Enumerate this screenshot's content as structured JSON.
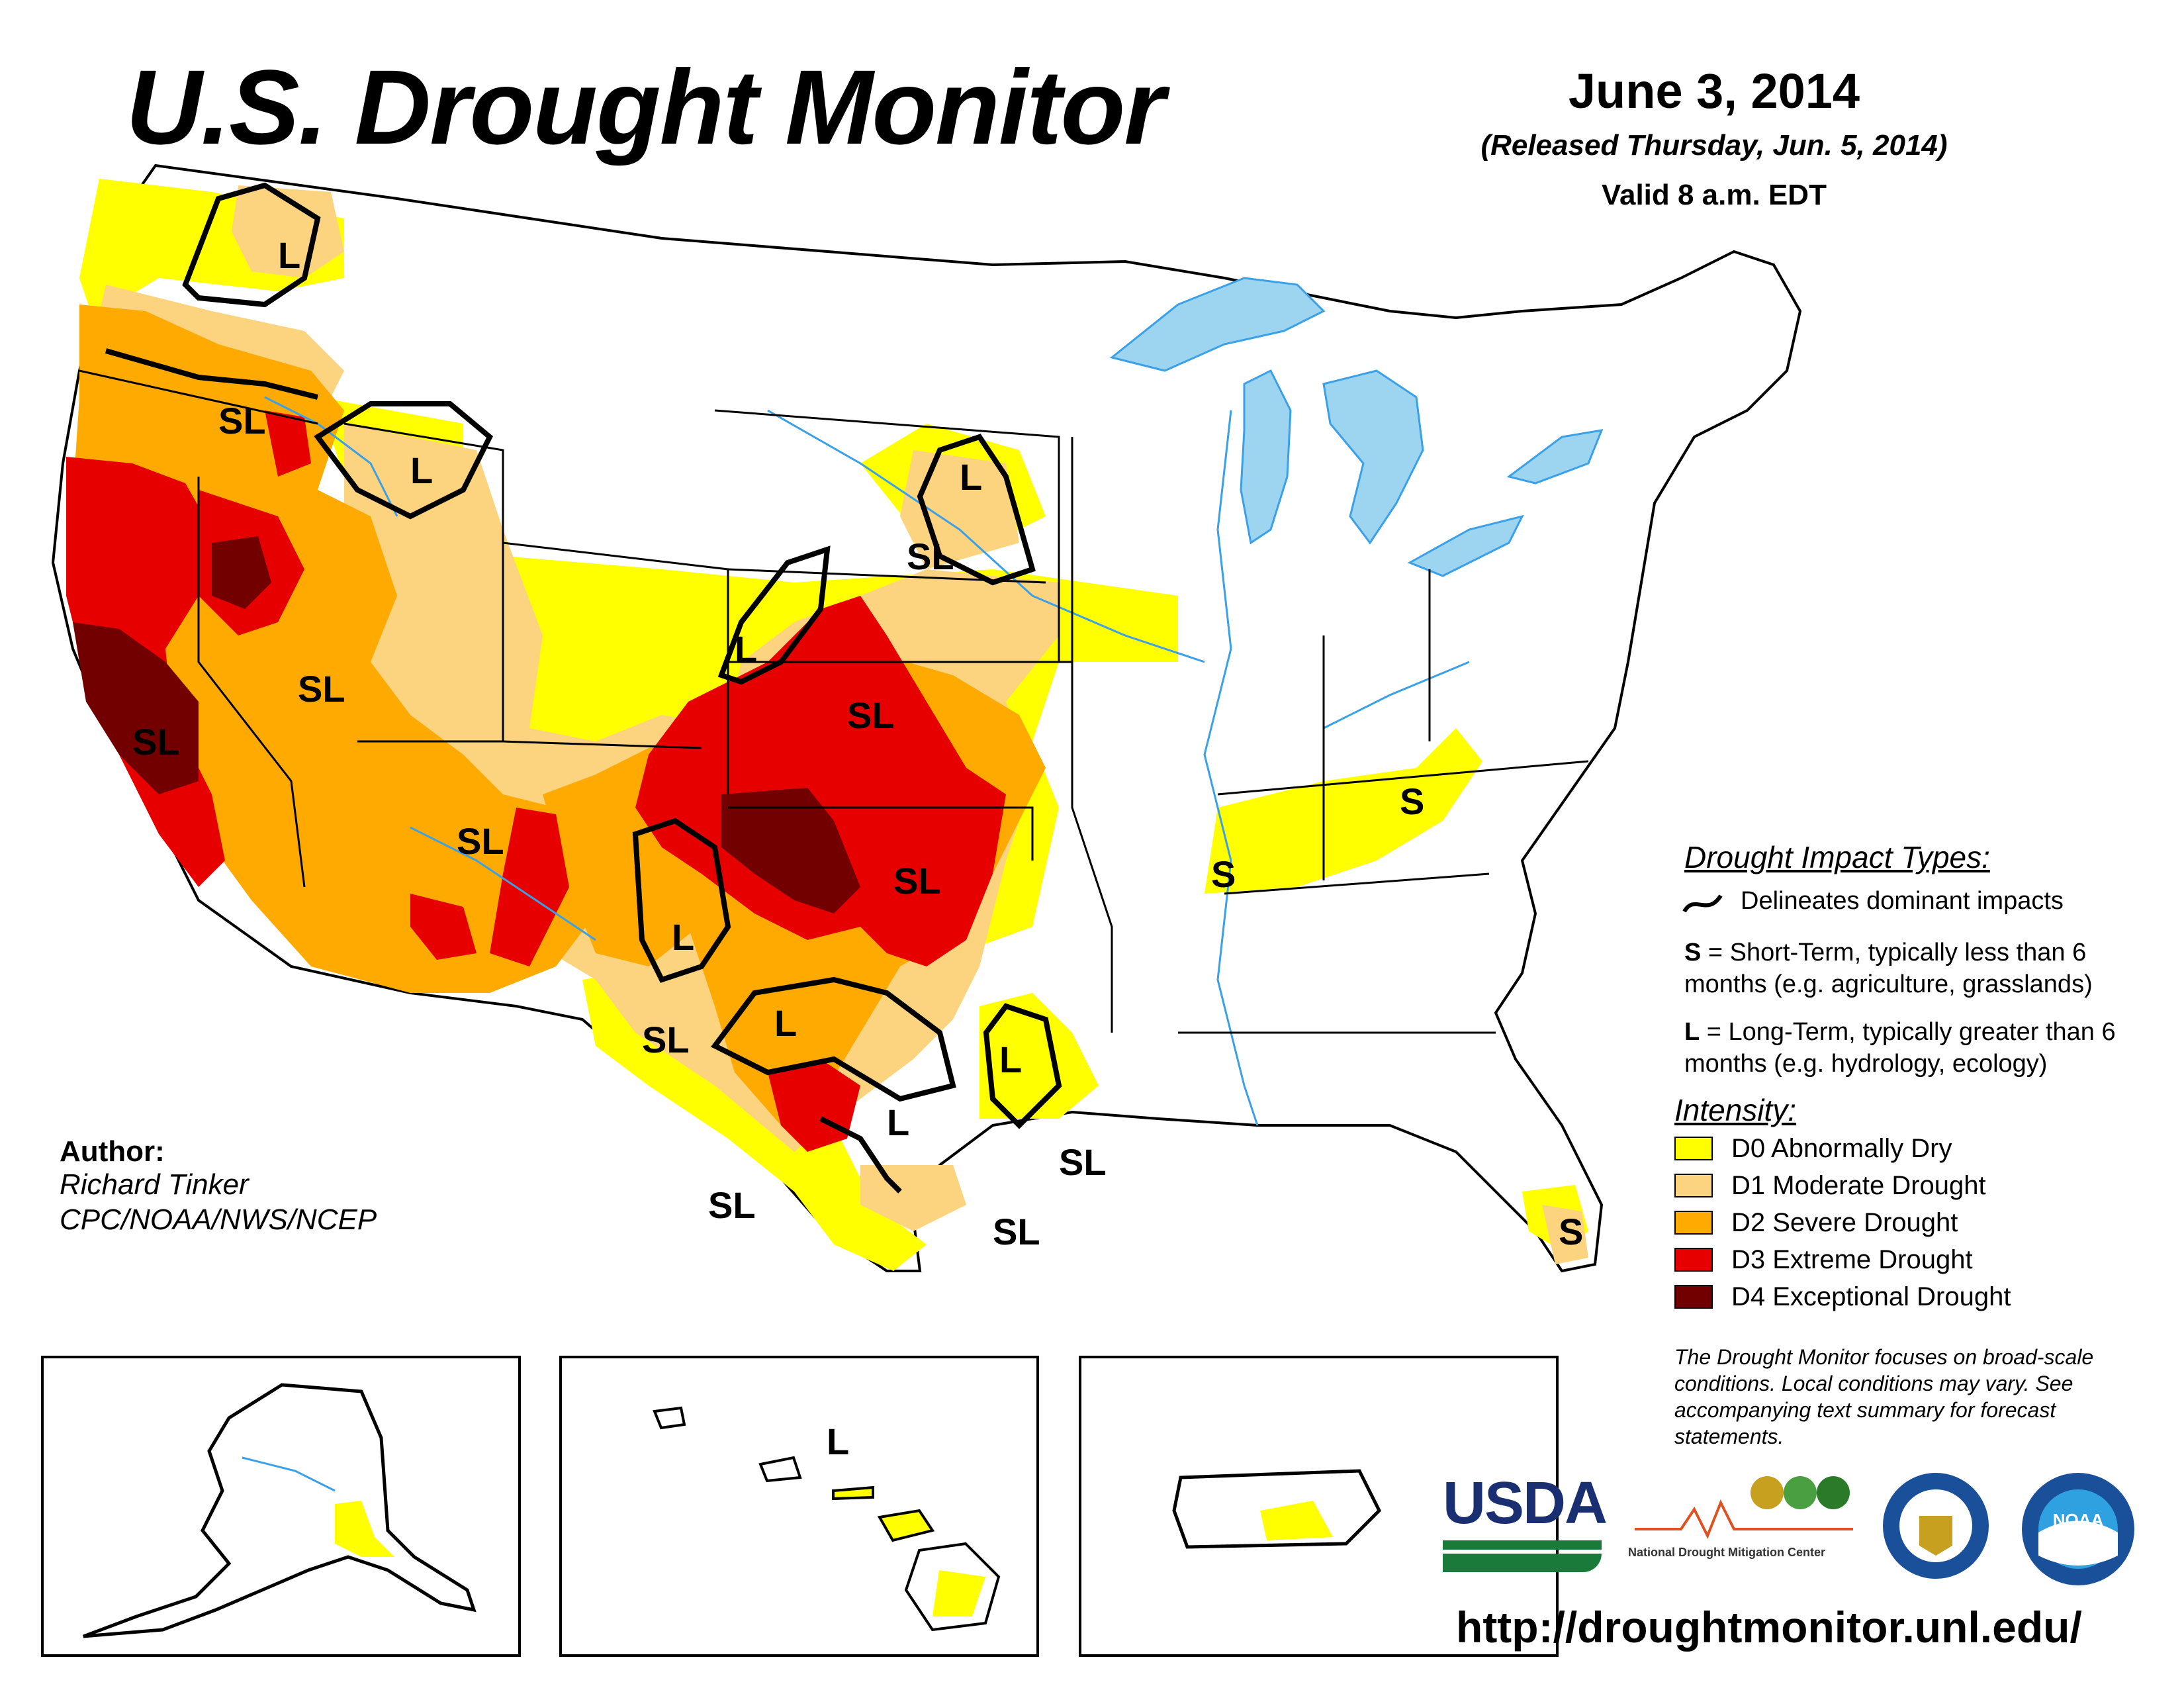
{
  "header": {
    "title": "U.S. Drought Monitor",
    "date": "June 3, 2014",
    "released": "(Released Thursday, Jun. 5, 2014)",
    "valid": "Valid 8 a.m. EDT"
  },
  "map_labels": {
    "west_l": "L",
    "oregon_sl": "SL",
    "idaho_l": "L",
    "california_sl": "SL",
    "nevada_sl": "SL",
    "arizona_sl": "SL",
    "dakota_l": "L",
    "nebraska_sl": "SL",
    "colorado_l": "L",
    "kansas_sl": "SL",
    "oklahoma_sl": "SL",
    "newmexico_l": "L",
    "westtexas_sl": "SL",
    "centraltexas_l": "L",
    "easttexas_l": "L",
    "southtexas_l": "L",
    "louisiana_sl": "SL",
    "texascoast_sl": "SL",
    "rio_sl": "SL",
    "tennessee_s": "S",
    "appalachia_s": "S",
    "florida_s": "S",
    "hawaii_l": "L"
  },
  "impact_types": {
    "title": "Drought Impact Types:",
    "delineates": "Delineates dominant impacts",
    "s_key": "S",
    "s_text": " = Short-Term, typically less than 6 months (e.g. agriculture, grasslands)",
    "l_key": "L",
    "l_text": " = Long-Term, typically greater than 6 months (e.g. hydrology, ecology)"
  },
  "intensity": {
    "title": "Intensity:",
    "items": [
      {
        "label": "D0 Abnormally Dry",
        "color": "#ffff00"
      },
      {
        "label": "D1 Moderate Drought",
        "color": "#fcd37f"
      },
      {
        "label": "D2 Severe Drought",
        "color": "#ffaa00"
      },
      {
        "label": "D3 Extreme Drought",
        "color": "#e60000"
      },
      {
        "label": "D4 Exceptional Drought",
        "color": "#730000"
      }
    ]
  },
  "note": "The Drought Monitor focuses on broad-scale conditions. Local conditions may vary. See accompanying text summary for forecast statements.",
  "author": {
    "label": "Author:",
    "name": "Richard Tinker",
    "org": "CPC/NOAA/NWS/NCEP"
  },
  "logos": {
    "usda": "USDA",
    "ndmc": "National Drought Mitigation Center",
    "noaa": "NOAA"
  },
  "url": "http://droughtmonitor.unl.edu/",
  "colors": {
    "water": "#9dd4f0",
    "river": "#3aa0e8",
    "boundary": "#000000",
    "county": "#a0a0a0"
  }
}
